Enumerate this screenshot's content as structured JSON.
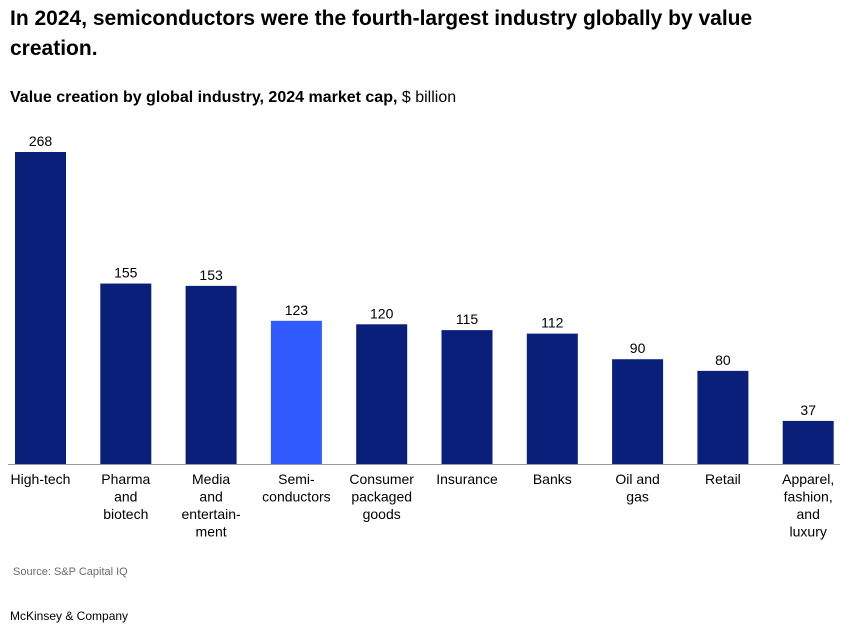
{
  "header": {
    "title": "In 2024, semiconductors were the fourth-largest industry globally by value creation.",
    "subtitle_bold": "Value creation by global industry, 2024 market cap,",
    "subtitle_unit": " $ billion"
  },
  "footer": {
    "source": "Source: S&P Capital IQ",
    "brand": "McKinsey & Company"
  },
  "colors": {
    "bar": "#0a1f7a",
    "highlight": "#2f5bff"
  },
  "chart_data": {
    "type": "bar",
    "title": "",
    "xlabel": "",
    "ylabel": "",
    "ylim": [
      0,
      268
    ],
    "grid": false,
    "categories": [
      [
        "High-tech"
      ],
      [
        "Pharma",
        "and",
        "biotech"
      ],
      [
        "Media",
        "and",
        "entertain-",
        "ment"
      ],
      [
        "Semi-",
        "conductors"
      ],
      [
        "Consumer",
        "packaged",
        "goods"
      ],
      [
        "Insurance"
      ],
      [
        "Banks"
      ],
      [
        "Oil and",
        "gas"
      ],
      [
        "Retail"
      ],
      [
        "Apparel,",
        "fashion,",
        "and",
        "luxury"
      ]
    ],
    "values": [
      268,
      155,
      153,
      123,
      120,
      115,
      112,
      90,
      80,
      37
    ],
    "highlight_index": 3
  }
}
